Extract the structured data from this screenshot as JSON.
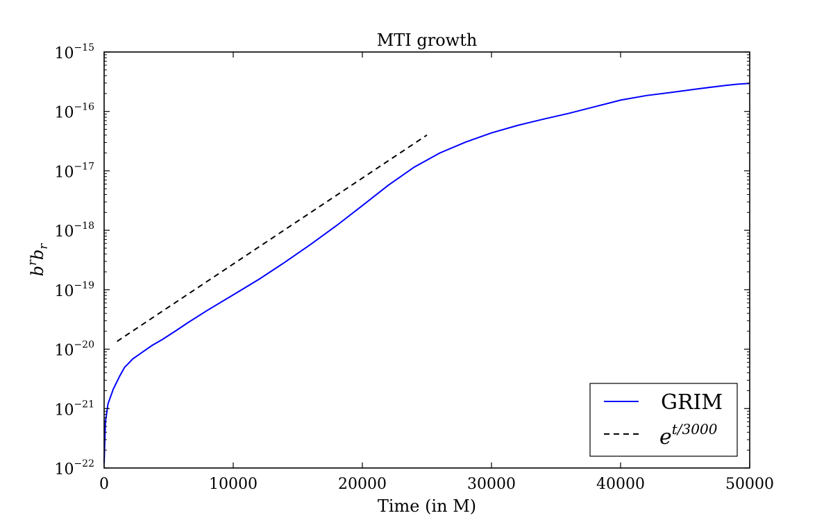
{
  "chart_data": {
    "type": "line",
    "title": "MTI growth",
    "xlabel": "Time (in M)",
    "ylabel": "b^r b_r",
    "yscale": "log",
    "xlim": [
      0,
      50000
    ],
    "ylim": [
      1e-22,
      1e-15
    ],
    "x_ticks": [
      "0",
      "10000",
      "20000",
      "30000",
      "40000",
      "50000"
    ],
    "y_ticks": [
      {
        "base": "10",
        "exp": "−15",
        "value": 1e-15
      },
      {
        "base": "10",
        "exp": "−16",
        "value": 1e-16
      },
      {
        "base": "10",
        "exp": "−17",
        "value": 1e-17
      },
      {
        "base": "10",
        "exp": "−18",
        "value": 1e-18
      },
      {
        "base": "10",
        "exp": "−19",
        "value": 1e-19
      },
      {
        "base": "10",
        "exp": "−20",
        "value": 1e-20
      },
      {
        "base": "10",
        "exp": "−21",
        "value": 1e-21
      },
      {
        "base": "10",
        "exp": "−22",
        "value": 1e-22
      }
    ],
    "grid": false,
    "legend_position": "bottom-right",
    "series": [
      {
        "name": "GRIM",
        "color": "#0000ff",
        "style": "solid",
        "x": [
          0,
          100,
          300,
          700,
          1200,
          1600,
          1800,
          2200,
          3000,
          3700,
          4500,
          5500,
          6500,
          8000,
          10000,
          12000,
          14000,
          16000,
          18000,
          20000,
          22000,
          24000,
          26000,
          28000,
          30000,
          32000,
          34000,
          36000,
          38000,
          40000,
          42000,
          44000,
          46000,
          48000,
          49000,
          50000
        ],
        "y": [
          1.2e-22,
          6e-22,
          1.2e-21,
          2.1e-21,
          3.5e-21,
          5e-21,
          5.5e-21,
          6.8e-21,
          9e-21,
          1.15e-20,
          1.45e-20,
          2e-20,
          2.8e-20,
          4.5e-20,
          8.2e-20,
          1.5e-19,
          2.9e-19,
          5.8e-19,
          1.2e-18,
          2.6e-18,
          5.7e-18,
          1.15e-17,
          2e-17,
          3.05e-17,
          4.35e-17,
          5.8e-17,
          7.4e-17,
          9.3e-17,
          1.2e-16,
          1.55e-16,
          1.85e-16,
          2.1e-16,
          2.4e-16,
          2.72e-16,
          2.87e-16,
          2.97e-16
        ]
      },
      {
        "name": "e^{t/3000}",
        "label_base": "e",
        "label_exp": "t/3000",
        "color": "#000000",
        "style": "dashed",
        "x": [
          1000,
          25000
        ],
        "y": [
          1.35e-20,
          4e-17
        ]
      }
    ]
  }
}
